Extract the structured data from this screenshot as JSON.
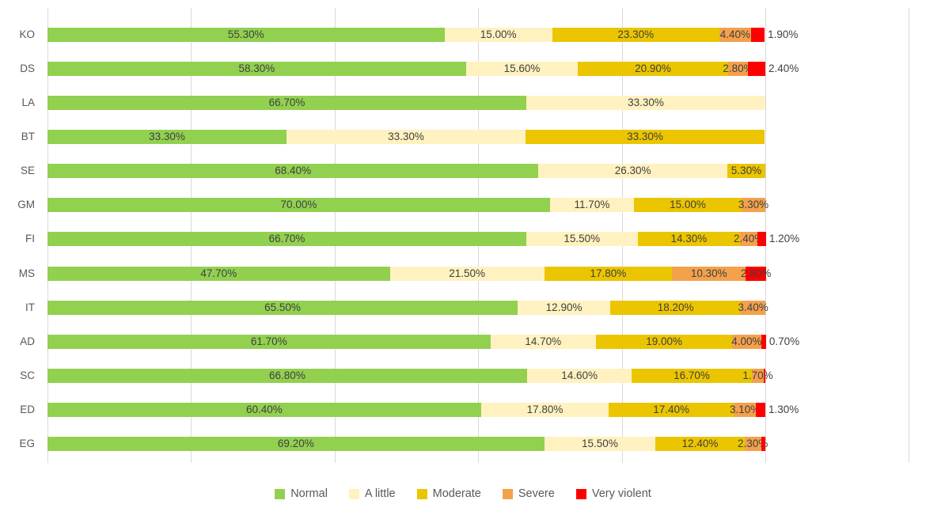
{
  "background": "#FFFFFF",
  "text_colors": {
    "axis_labels": "#595959",
    "data_labels": "#404040",
    "gridline": "#D9D9D9"
  },
  "chart_data": {
    "type": "bar",
    "stacked": true,
    "orientation": "horizontal",
    "title": "",
    "xlabel": "",
    "ylabel": "",
    "axis": {
      "min": 0,
      "max": 120,
      "step": 20,
      "grid": true,
      "tick_labels_visible": false
    },
    "legend_position": "bottom-center",
    "categories": [
      "KO",
      "DS",
      "LA",
      "BT",
      "SE",
      "GM",
      "FI",
      "MS",
      "IT",
      "AD",
      "SC",
      "ED",
      "EG"
    ],
    "series": [
      {
        "name": "Normal",
        "color": "#92D050",
        "values": [
          55.3,
          58.3,
          66.7,
          33.3,
          68.4,
          70.0,
          66.7,
          47.7,
          65.5,
          61.7,
          66.8,
          60.4,
          69.2
        ],
        "labels": [
          "55.30%",
          "58.30%",
          "66.70%",
          "33.30%",
          "68.40%",
          "70.00%",
          "66.70%",
          "47.70%",
          "65.50%",
          "61.70%",
          "66.80%",
          "60.40%",
          "69.20%"
        ],
        "label_pos": [
          "in",
          "in",
          "in",
          "in",
          "in",
          "in",
          "in",
          "in",
          "in",
          "in",
          "in",
          "in",
          "in"
        ]
      },
      {
        "name": "A little",
        "color": "#FFF2C0",
        "values": [
          15.0,
          15.6,
          33.3,
          33.3,
          26.3,
          11.7,
          15.5,
          21.5,
          12.9,
          14.7,
          14.6,
          17.8,
          15.5
        ],
        "labels": [
          "15.00%",
          "15.60%",
          "33.30%",
          "33.30%",
          "26.30%",
          "11.70%",
          "15.50%",
          "21.50%",
          "12.90%",
          "14.70%",
          "14.60%",
          "17.80%",
          "15.50%"
        ],
        "label_pos": [
          "in",
          "in",
          "in",
          "in",
          "in",
          "in",
          "in",
          "in",
          "in",
          "in",
          "in",
          "in",
          "in"
        ]
      },
      {
        "name": "Moderate",
        "color": "#EBC500",
        "values": [
          23.3,
          20.9,
          0,
          33.3,
          5.3,
          15.0,
          14.3,
          17.8,
          18.2,
          19.0,
          16.7,
          17.4,
          12.4
        ],
        "labels": [
          "23.30%",
          "20.90%",
          "",
          "33.30%",
          "5.30%",
          "15.00%",
          "14.30%",
          "17.80%",
          "18.20%",
          "19.00%",
          "16.70%",
          "17.40%",
          "12.40%"
        ],
        "label_pos": [
          "in",
          "in",
          "",
          "in",
          "in",
          "in",
          "in",
          "in",
          "in",
          "in",
          "in",
          "in",
          "in"
        ]
      },
      {
        "name": "Severe",
        "color": "#F4A14C",
        "values": [
          4.4,
          2.8,
          0,
          0,
          0,
          3.3,
          2.4,
          10.3,
          3.4,
          4.0,
          1.7,
          3.1,
          2.3
        ],
        "labels": [
          "4.40%",
          "2.80%",
          "",
          "",
          "",
          "3.30%",
          "2.40%",
          "10.30%",
          "3.40%",
          "4.00%",
          "1.70%",
          "3.10%",
          "2.30%"
        ],
        "label_pos": [
          "in",
          "in",
          "",
          "",
          "",
          "in",
          "in",
          "in",
          "in",
          "in",
          "in",
          "in",
          "in"
        ]
      },
      {
        "name": "Very violent",
        "color": "#FF0000",
        "values": [
          1.9,
          2.4,
          0,
          0,
          0,
          0,
          1.2,
          2.8,
          0,
          0.7,
          0.2,
          1.3,
          0.6
        ],
        "labels": [
          "1.90%",
          "2.40%",
          "",
          "",
          "",
          "",
          "1.20%",
          "2.80%",
          "",
          "0.70%",
          "",
          "1.30%",
          ""
        ],
        "label_pos": [
          "out",
          "out",
          "",
          "",
          "",
          "",
          "out",
          "in",
          "",
          "out",
          "",
          "out",
          ""
        ]
      }
    ]
  }
}
